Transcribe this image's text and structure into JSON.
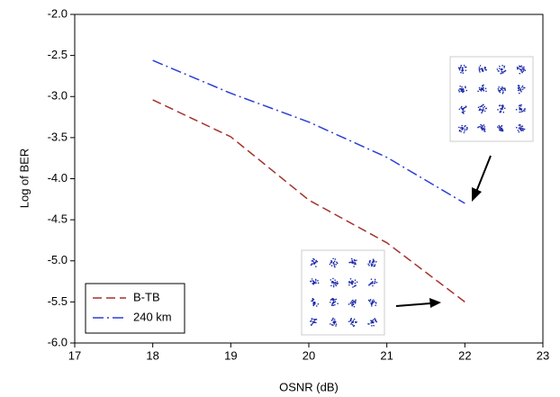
{
  "chart_data": {
    "type": "line",
    "x_label": "OSNR (dB)",
    "y_label": "Log of BER",
    "xlim": [
      17,
      23
    ],
    "xticks": [
      17,
      18,
      19,
      20,
      21,
      22,
      23
    ],
    "ylim": [
      -6,
      -2
    ],
    "yticks": [
      {
        "value": -2,
        "label": "-2.0"
      },
      {
        "value": -2.5,
        "label": "-2.5"
      },
      {
        "value": -3,
        "label": "-3.0"
      },
      {
        "value": -3.5,
        "label": "-3.5"
      },
      {
        "value": -4,
        "label": "-4.0"
      },
      {
        "value": -4.5,
        "label": "-4.5"
      },
      {
        "value": -5,
        "label": "-5.0"
      },
      {
        "value": -5.5,
        "label": "-5.5"
      },
      {
        "value": -6,
        "label": "-6.0"
      }
    ],
    "legend": "lower left",
    "series": [
      {
        "name": "B-TB",
        "color": "#a3322c",
        "dash": "dashed",
        "x": [
          18,
          19,
          20,
          21,
          22
        ],
        "values": [
          -3.04,
          -3.49,
          -4.26,
          -4.78,
          -5.5
        ]
      },
      {
        "name": "240 km",
        "color": "#2b3fd6",
        "dash": "dashdot",
        "x": [
          18,
          19,
          20,
          21,
          22
        ],
        "values": [
          -2.56,
          -2.96,
          -3.31,
          -3.74,
          -4.3
        ]
      }
    ]
  }
}
